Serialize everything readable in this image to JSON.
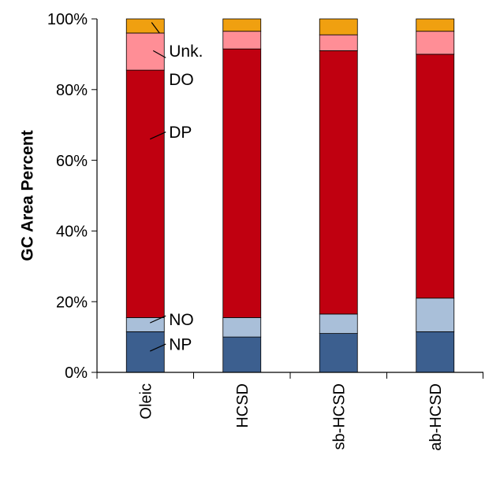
{
  "chart_data": {
    "type": "bar",
    "stacked": true,
    "percent": true,
    "categories": [
      "Oleic",
      "HCSD",
      "sb-HCSD",
      "ab-HCSD"
    ],
    "ylabel": "GC Area Percent",
    "ylim": [
      0,
      100
    ],
    "yticks": [
      "0%",
      "20%",
      "40%",
      "60%",
      "80%",
      "100%"
    ],
    "grid": false,
    "series": [
      {
        "name": "NP",
        "color": "#3c5f8f",
        "values": [
          11.5,
          10,
          11,
          11.5
        ]
      },
      {
        "name": "NO",
        "color": "#a9bfd9",
        "values": [
          4,
          5.5,
          5.5,
          9.5
        ]
      },
      {
        "name": "DP",
        "color": "#c00010",
        "values": [
          70,
          76,
          74.5,
          69
        ]
      },
      {
        "name": "DO",
        "color": "#ff8e96",
        "values": [
          10.5,
          5,
          4.5,
          6.5
        ]
      },
      {
        "name": "Unk.",
        "color": "#f0a010",
        "values": [
          4,
          3.5,
          4.5,
          3.5
        ]
      }
    ],
    "annotations": [
      "Unk.",
      "DO",
      "DP",
      "NO",
      "NP"
    ]
  }
}
